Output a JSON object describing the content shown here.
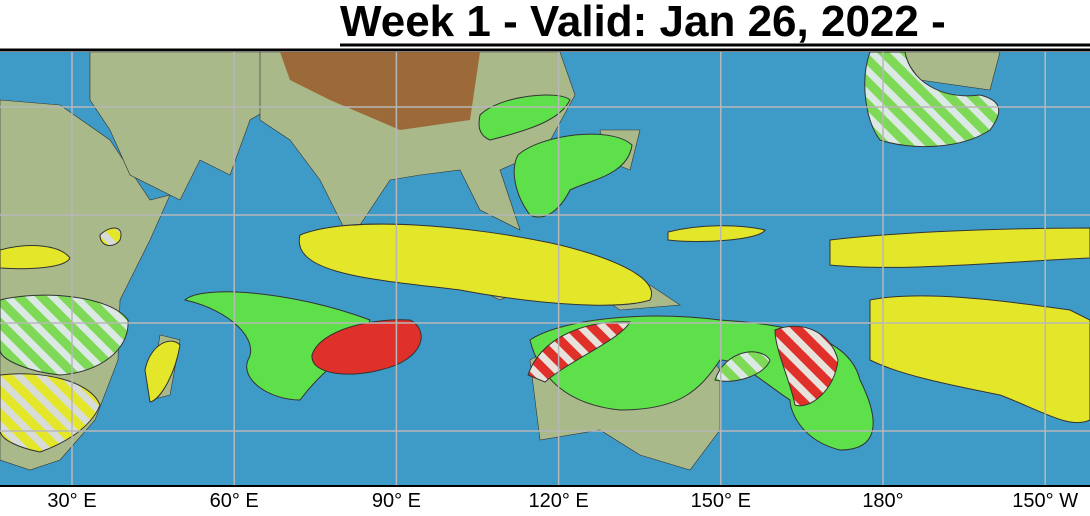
{
  "header": {
    "title": "Week 1 - Valid: Jan 26, 2022 -"
  },
  "map": {
    "longitude_labels": [
      "30° E",
      "60° E",
      "90° E",
      "120° E",
      "150° E",
      "180°",
      "150° W"
    ]
  }
}
